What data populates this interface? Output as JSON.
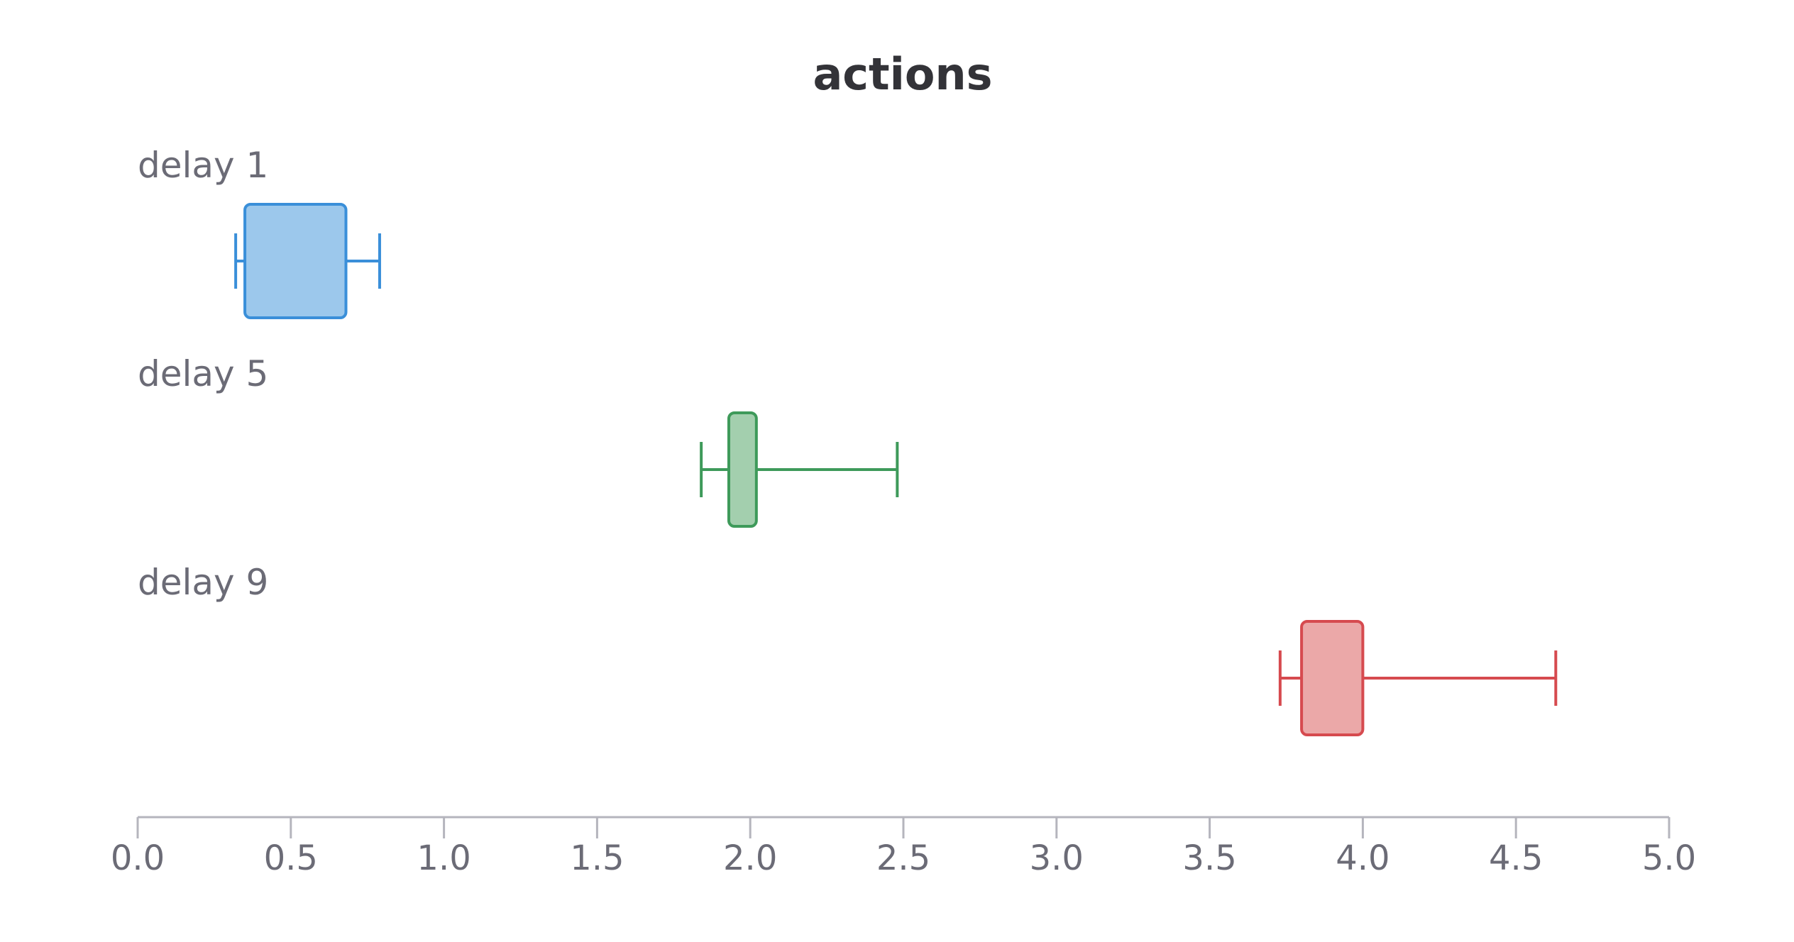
{
  "chart_data": {
    "type": "boxplot",
    "orientation": "horizontal",
    "title": "actions",
    "xlabel": "",
    "ylabel": "",
    "xlim": [
      0,
      5
    ],
    "grid": false,
    "legend": "none",
    "x_ticks": [
      "0.0",
      "0.5",
      "1.0",
      "1.5",
      "2.0",
      "2.5",
      "3.0",
      "3.5",
      "4.0",
      "4.5",
      "5.0"
    ],
    "series": [
      {
        "name": "delay 1",
        "color": "#3a8fd9",
        "fill": "#9cc8ec",
        "min": 0.32,
        "q1": 0.35,
        "q3": 0.68,
        "max": 0.79
      },
      {
        "name": "delay 5",
        "color": "#3e9a5a",
        "fill": "#a3cfae",
        "min": 1.84,
        "q1": 1.93,
        "q3": 2.02,
        "max": 2.48
      },
      {
        "name": "delay 9",
        "color": "#d64a4f",
        "fill": "#eba8a8",
        "min": 3.73,
        "q1": 3.8,
        "q3": 4.0,
        "max": 4.63
      }
    ]
  }
}
